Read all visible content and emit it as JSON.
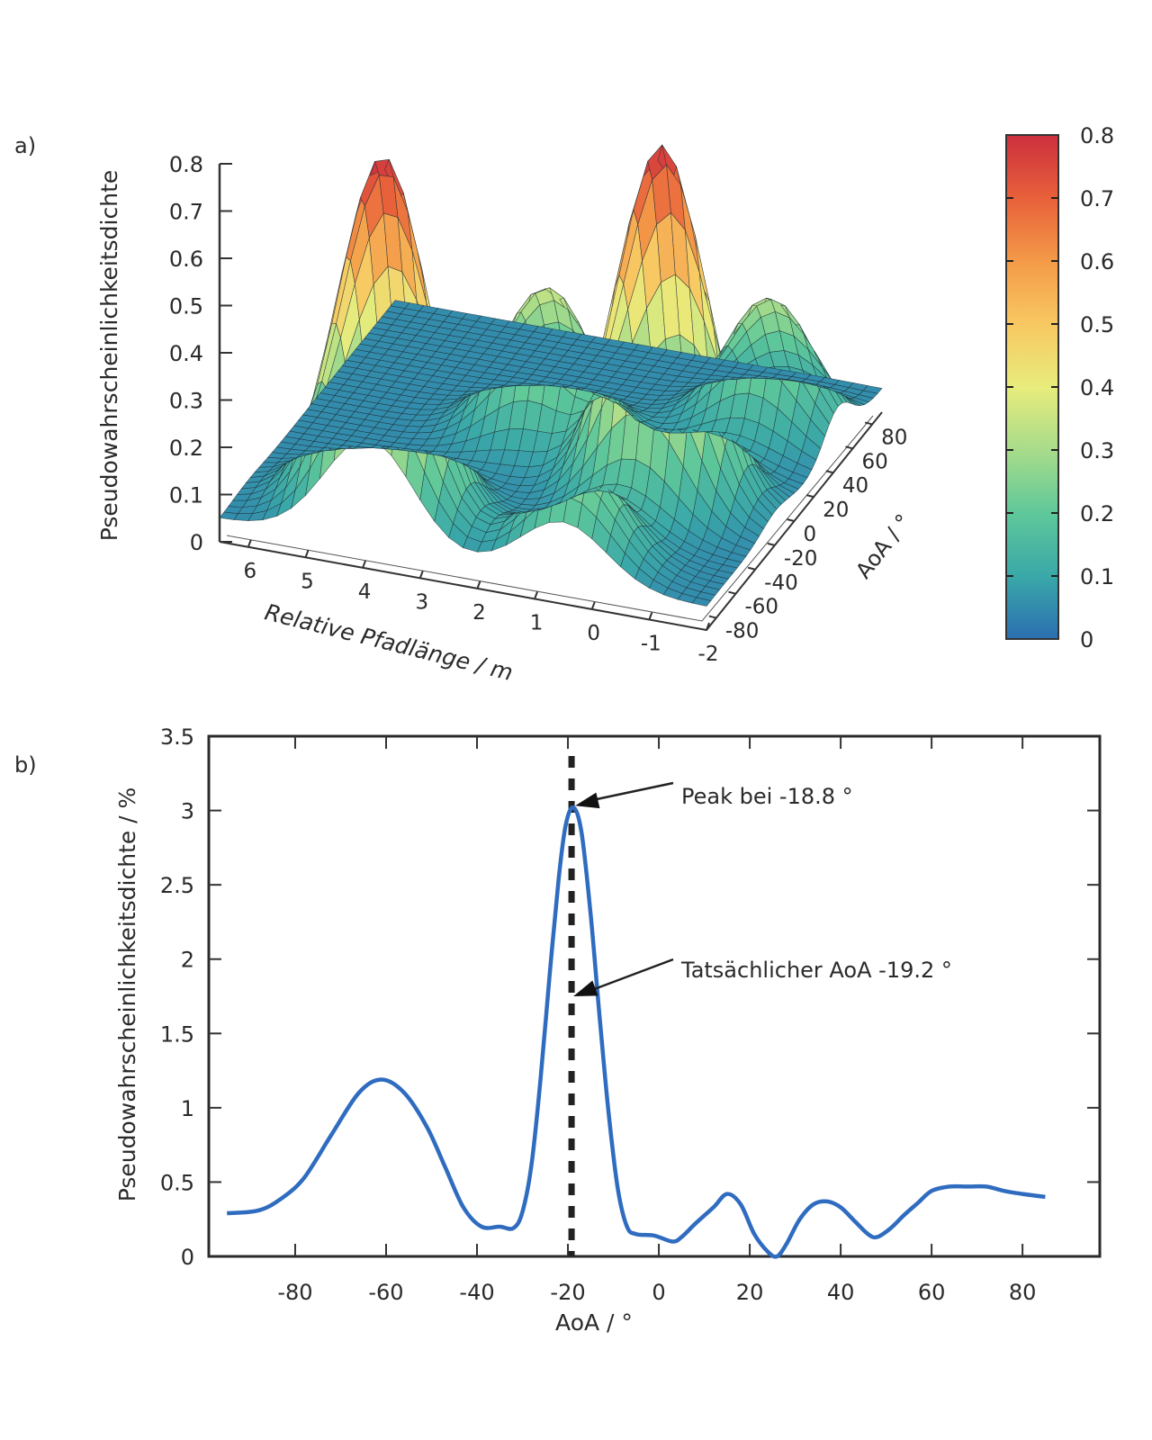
{
  "chart_data": [
    {
      "panel_label": "a)",
      "type": "surface3d",
      "title": "",
      "zlabel": "Pseudowahrscheinlichkeitsdichte",
      "xlabel": "Relative Pfadlänge / m",
      "ylabel": "AoA / °",
      "z_ticks": [
        "0",
        "0.1",
        "0.2",
        "0.3",
        "0.4",
        "0.5",
        "0.6",
        "0.7",
        "0.8"
      ],
      "x_ticks": [
        "6",
        "5",
        "4",
        "3",
        "2",
        "1",
        "0",
        "-1",
        "-2"
      ],
      "y_ticks": [
        "-80",
        "-60",
        "-40",
        "-20",
        "0",
        "20",
        "40",
        "60",
        "80"
      ],
      "zlim": [
        0,
        0.8
      ],
      "xlim": [
        -2,
        6.5
      ],
      "ylim": [
        -90,
        90
      ],
      "peaks": [
        {
          "path_length_m": 0.0,
          "aoa_deg": -19,
          "value": 0.8
        },
        {
          "path_length_m": 4.2,
          "aoa_deg": -60,
          "value": 0.62
        },
        {
          "path_length_m": 3.8,
          "aoa_deg": -75,
          "value": 0.36
        },
        {
          "path_length_m": 2.5,
          "aoa_deg": 10,
          "value": 0.37
        },
        {
          "path_length_m": -0.8,
          "aoa_deg": 45,
          "value": 0.33
        },
        {
          "path_length_m": 0.5,
          "aoa_deg": -75,
          "value": 0.27
        }
      ],
      "colorbar": {
        "ticks": [
          "0",
          "0.1",
          "0.2",
          "0.3",
          "0.4",
          "0.5",
          "0.6",
          "0.7",
          "0.8"
        ],
        "range": [
          0,
          0.8
        ],
        "colors": [
          "#2b6fb1",
          "#3aa8a8",
          "#5fc89a",
          "#a8dc8a",
          "#e8ec7c",
          "#f8c862",
          "#f49a48",
          "#e8603a",
          "#cc2f3e"
        ]
      }
    },
    {
      "panel_label": "b)",
      "type": "line",
      "title": "",
      "xlabel": "AoA / °",
      "ylabel": "Pseudowahrscheinlichkeitsdichte / %",
      "xlim": [
        -99,
        97
      ],
      "ylim": [
        0,
        3.5
      ],
      "x_ticks": [
        -80,
        -60,
        -40,
        -20,
        0,
        20,
        40,
        60,
        80
      ],
      "x_tick_labels": [
        "-80",
        "-60",
        "-40",
        "-20",
        "0",
        "20",
        "40",
        "60",
        "80"
      ],
      "y_ticks": [
        0,
        0.5,
        1,
        1.5,
        2,
        2.5,
        3,
        3.5
      ],
      "y_tick_labels": [
        "0",
        "0.5",
        "1",
        "1.5",
        "2",
        "2.5",
        "3",
        "3.5"
      ],
      "grid": false,
      "series": [
        {
          "name": "Pseudowahrscheinlichkeitsdichte",
          "color": "#2f6cc0",
          "x": [
            -95,
            -88,
            -83,
            -78,
            -72,
            -66,
            -61,
            -56,
            -51,
            -47,
            -43,
            -39,
            -35,
            -32,
            -30,
            -28,
            -26,
            -24,
            -22,
            -20.5,
            -18.8,
            -17,
            -15,
            -13,
            -11,
            -9,
            -7,
            -5,
            -1,
            3,
            5,
            8,
            12,
            15,
            18,
            21,
            24,
            26,
            28,
            31,
            34,
            37,
            40,
            43,
            46,
            48,
            51,
            54,
            57,
            60,
            64,
            68,
            72,
            76,
            80,
            85
          ],
          "y": [
            0.29,
            0.31,
            0.39,
            0.53,
            0.82,
            1.1,
            1.19,
            1.1,
            0.87,
            0.6,
            0.33,
            0.2,
            0.2,
            0.19,
            0.3,
            0.62,
            1.2,
            1.9,
            2.55,
            2.9,
            3.02,
            2.85,
            2.3,
            1.6,
            0.95,
            0.45,
            0.2,
            0.15,
            0.14,
            0.1,
            0.13,
            0.22,
            0.33,
            0.42,
            0.35,
            0.15,
            0.03,
            0.0,
            0.08,
            0.25,
            0.35,
            0.37,
            0.33,
            0.24,
            0.15,
            0.13,
            0.19,
            0.28,
            0.36,
            0.44,
            0.47,
            0.47,
            0.47,
            0.44,
            0.42,
            0.4
          ]
        }
      ],
      "reference_line": {
        "x": -19.2,
        "style": "dashed",
        "color": "#222222"
      },
      "annotations": [
        {
          "text": "Peak bei -18.8 °",
          "x": -18.8,
          "y": 3.02
        },
        {
          "text": "Tatsächlicher AoA -19.2 °",
          "x": -19.2,
          "y": 1.75
        }
      ]
    }
  ]
}
